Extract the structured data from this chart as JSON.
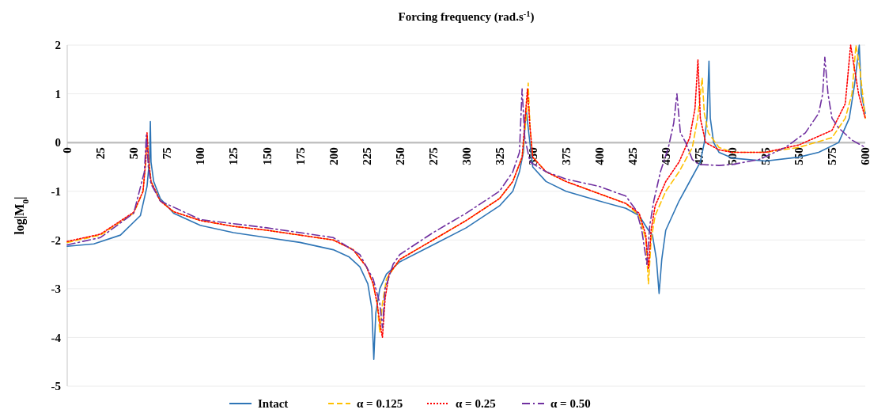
{
  "chart_data": {
    "type": "line",
    "xlabel": "Forcing frequency (rad.s$^{-1}$)",
    "ylabel": "log|M$_{0}$|",
    "xlim": [
      0,
      600
    ],
    "xticks": [
      0,
      25,
      50,
      75,
      100,
      125,
      150,
      175,
      200,
      225,
      250,
      275,
      300,
      325,
      350,
      375,
      400,
      425,
      450,
      475,
      500,
      525,
      550,
      575,
      600
    ],
    "ylim": [
      -5,
      2
    ],
    "yticks": [
      -5,
      -4,
      -3,
      -2,
      -1,
      0,
      1,
      2
    ],
    "grid": "y",
    "legend": "bottom",
    "marker": "none",
    "series": [
      {
        "name": "Intact",
        "color": "#2e75b6",
        "line_style": "solid",
        "x": [
          0,
          20,
          40,
          55,
          60,
          62,
          62.5,
          63,
          65,
          70,
          80,
          100,
          125,
          150,
          175,
          200,
          212,
          220,
          226,
          229,
          230.5,
          232,
          235,
          240,
          250,
          275,
          300,
          325,
          335,
          340,
          343,
          345,
          347,
          350,
          360,
          375,
          400,
          420,
          430,
          437,
          440,
          443,
          445,
          447,
          450,
          460,
          470,
          476,
          479,
          481,
          482.5,
          483.5,
          486,
          490,
          500,
          525,
          550,
          565,
          580,
          588,
          592,
          595.5,
          597,
          600
        ],
        "values": [
          -2.13,
          -2.08,
          -1.9,
          -1.5,
          -0.9,
          -0.3,
          0.43,
          -0.4,
          -0.8,
          -1.15,
          -1.45,
          -1.7,
          -1.85,
          -1.95,
          -2.05,
          -2.2,
          -2.35,
          -2.55,
          -2.9,
          -3.4,
          -4.45,
          -3.5,
          -3.0,
          -2.7,
          -2.45,
          -2.1,
          -1.75,
          -1.3,
          -1.0,
          -0.6,
          -0.2,
          0.7,
          0.2,
          -0.5,
          -0.8,
          -1.0,
          -1.2,
          -1.35,
          -1.5,
          -1.8,
          -1.9,
          -2.4,
          -3.1,
          -2.4,
          -1.8,
          -1.2,
          -0.7,
          -0.4,
          0,
          0.5,
          1.67,
          0.5,
          0,
          -0.2,
          -0.32,
          -0.38,
          -0.3,
          -0.2,
          0,
          0.5,
          1.2,
          2,
          1,
          0.6
        ]
      },
      {
        "name": "α = 0.125",
        "color": "#ffc000",
        "line_style": "dashed",
        "x": [
          0,
          25,
          50,
          57,
          59,
          60,
          61,
          63,
          70,
          80,
          100,
          125,
          150,
          175,
          200,
          215,
          225,
          230,
          233,
          235,
          237,
          240,
          250,
          275,
          300,
          325,
          335,
          342,
          345,
          346.6,
          348,
          350,
          360,
          375,
          400,
          420,
          430,
          435,
          437,
          439,
          442,
          450,
          460,
          470,
          474,
          477.4,
          479,
          482,
          490,
          500,
          525,
          550,
          575,
          585,
          590,
          593,
          596,
          600
        ],
        "values": [
          -2.05,
          -1.9,
          -1.45,
          -1.0,
          -0.4,
          0.15,
          -0.3,
          -0.8,
          -1.2,
          -1.42,
          -1.6,
          -1.72,
          -1.8,
          -1.9,
          -2.0,
          -2.2,
          -2.55,
          -2.9,
          -3.3,
          -3.9,
          -3.3,
          -2.8,
          -2.4,
          -2.0,
          -1.6,
          -1.15,
          -0.8,
          -0.3,
          0.5,
          1.22,
          0.3,
          -0.3,
          -0.6,
          -0.8,
          -1.05,
          -1.25,
          -1.5,
          -2.0,
          -2.9,
          -2.0,
          -1.5,
          -1.0,
          -0.6,
          -0.1,
          0.5,
          1.33,
          0.6,
          0.2,
          -0.1,
          -0.2,
          -0.2,
          -0.1,
          0.1,
          0.5,
          1.0,
          2,
          1.5,
          0.5
        ]
      },
      {
        "name": "α = 0.25",
        "color": "#ff0000",
        "line_style": "dotted",
        "x": [
          0,
          25,
          50,
          57,
          59,
          60,
          61,
          63,
          70,
          80,
          100,
          125,
          150,
          175,
          200,
          215,
          225,
          230,
          233,
          235,
          237,
          239,
          242,
          250,
          275,
          300,
          325,
          335,
          342,
          346,
          348,
          350,
          360,
          375,
          400,
          420,
          430,
          435,
          437,
          439,
          442,
          450,
          460,
          468,
          472,
          474.2,
          476,
          480,
          490,
          500,
          525,
          550,
          575,
          585,
          589,
          595,
          600
        ],
        "values": [
          -2.03,
          -1.88,
          -1.43,
          -1.0,
          -0.4,
          0.2,
          -0.3,
          -0.8,
          -1.2,
          -1.42,
          -1.6,
          -1.72,
          -1.8,
          -1.9,
          -2.0,
          -2.2,
          -2.55,
          -2.9,
          -3.3,
          -3.7,
          -4.0,
          -3.2,
          -2.7,
          -2.4,
          -2.0,
          -1.6,
          -1.15,
          -0.8,
          -0.3,
          1.1,
          0.3,
          -0.3,
          -0.6,
          -0.8,
          -1.05,
          -1.25,
          -1.45,
          -1.9,
          -2.6,
          -1.8,
          -1.3,
          -0.8,
          -0.4,
          0.1,
          0.7,
          1.7,
          0.5,
          0.0,
          -0.15,
          -0.2,
          -0.2,
          -0.05,
          0.25,
          0.8,
          2,
          1,
          0.5
        ]
      },
      {
        "name": "α = 0.50",
        "color": "#7030a0",
        "line_style": "dashdot",
        "x": [
          0,
          25,
          50,
          58,
          59.5,
          61,
          63,
          70,
          100,
          150,
          200,
          220,
          230,
          235,
          237,
          239,
          245,
          250,
          275,
          300,
          325,
          335,
          340,
          342,
          344,
          348,
          360,
          375,
          400,
          420,
          428,
          432,
          435.8,
          438,
          441,
          446,
          452,
          456,
          458.4,
          461,
          465,
          470,
          475,
          490,
          500,
          520,
          540,
          555,
          565,
          568,
          569.6,
          572,
          575,
          580,
          590,
          600
        ],
        "values": [
          -2.1,
          -1.95,
          -1.45,
          -0.6,
          0.15,
          -0.5,
          -0.85,
          -1.2,
          -1.58,
          -1.75,
          -1.95,
          -2.3,
          -2.8,
          -3.3,
          -3.8,
          -3.0,
          -2.5,
          -2.3,
          -1.85,
          -1.45,
          -1.0,
          -0.6,
          -0.2,
          1.1,
          0.1,
          -0.4,
          -0.6,
          -0.75,
          -0.9,
          -1.1,
          -1.4,
          -1.8,
          -2.5,
          -1.7,
          -1.2,
          -0.6,
          -0.1,
          0.4,
          1.0,
          0.2,
          0,
          -0.35,
          -0.45,
          -0.47,
          -0.45,
          -0.35,
          -0.1,
          0.2,
          0.6,
          1.0,
          1.75,
          1.0,
          0.5,
          0.3,
          0.05,
          -0.1
        ]
      }
    ]
  }
}
